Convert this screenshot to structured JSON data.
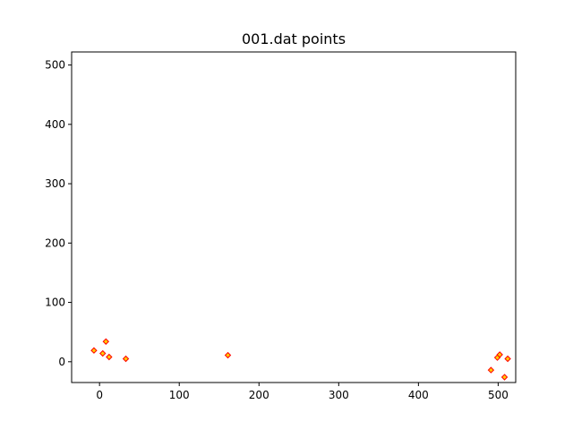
{
  "chart_data": {
    "type": "scatter",
    "title": "001.dat points",
    "xlabel": "",
    "ylabel": "",
    "xlim": [
      -35,
      522
    ],
    "ylim": [
      -35,
      522
    ],
    "x_ticks": [
      0,
      100,
      200,
      300,
      400,
      500
    ],
    "y_ticks": [
      0,
      100,
      200,
      300,
      400,
      500
    ],
    "grid": false,
    "legend": "none",
    "marker": "diamond",
    "marker_edge_color": "#ff0000",
    "marker_face_color": "#ffcc00",
    "points": [
      {
        "x": -7,
        "y": 19
      },
      {
        "x": 4,
        "y": 14
      },
      {
        "x": 8,
        "y": 34
      },
      {
        "x": 12,
        "y": 8
      },
      {
        "x": 33,
        "y": 5
      },
      {
        "x": 161,
        "y": 11
      },
      {
        "x": 491,
        "y": -14
      },
      {
        "x": 499,
        "y": 7
      },
      {
        "x": 502,
        "y": 12
      },
      {
        "x": 508,
        "y": -26
      },
      {
        "x": 512,
        "y": 5
      }
    ]
  }
}
